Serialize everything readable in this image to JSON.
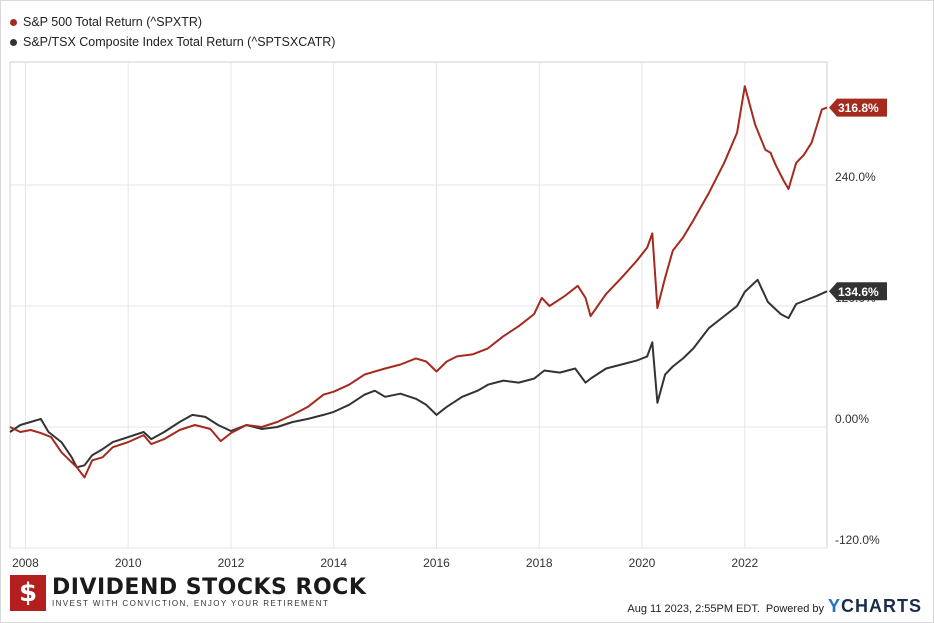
{
  "chart_data": {
    "type": "line",
    "legend": [
      {
        "name": "S&P 500 Total Return (^SPXTR)",
        "color": "#a52a1e"
      },
      {
        "name": "S&P/TSX Composite Index Total Return (^SPTSXCATR)",
        "color": "#333333"
      }
    ],
    "x_ticks": [
      "2008",
      "2010",
      "2012",
      "2014",
      "2016",
      "2018",
      "2020",
      "2022"
    ],
    "x_tick_values": [
      2008.0,
      2010.0,
      2012.0,
      2014.0,
      2016.0,
      2018.0,
      2020.0,
      2022.0
    ],
    "x_range": [
      2007.7,
      2023.6
    ],
    "y_ticks": [
      "-120.0%",
      "0.00%",
      "120.0%",
      "240.0%"
    ],
    "y_tick_values": [
      -120,
      0,
      120,
      240
    ],
    "y_range": [
      -120,
      362
    ],
    "ylabel_position": "right",
    "grid": true,
    "series": [
      {
        "name": "S&P 500 Total Return (^SPXTR)",
        "color": "#a52a1e",
        "end_label": "316.8%",
        "points": [
          [
            2007.7,
            0
          ],
          [
            2007.9,
            -5
          ],
          [
            2008.1,
            -3
          ],
          [
            2008.3,
            -6
          ],
          [
            2008.5,
            -10
          ],
          [
            2008.7,
            -25
          ],
          [
            2008.9,
            -35
          ],
          [
            2009.0,
            -40
          ],
          [
            2009.15,
            -50
          ],
          [
            2009.3,
            -33
          ],
          [
            2009.5,
            -30
          ],
          [
            2009.7,
            -20
          ],
          [
            2010.0,
            -15
          ],
          [
            2010.3,
            -8
          ],
          [
            2010.45,
            -17
          ],
          [
            2010.7,
            -12
          ],
          [
            2011.0,
            -3
          ],
          [
            2011.3,
            2
          ],
          [
            2011.6,
            -2
          ],
          [
            2011.8,
            -14
          ],
          [
            2012.0,
            -6
          ],
          [
            2012.3,
            2
          ],
          [
            2012.6,
            0
          ],
          [
            2012.9,
            5
          ],
          [
            2013.2,
            12
          ],
          [
            2013.5,
            20
          ],
          [
            2013.8,
            32
          ],
          [
            2014.0,
            35
          ],
          [
            2014.3,
            42
          ],
          [
            2014.6,
            52
          ],
          [
            2014.8,
            55
          ],
          [
            2015.0,
            58
          ],
          [
            2015.3,
            62
          ],
          [
            2015.6,
            68
          ],
          [
            2015.8,
            65
          ],
          [
            2016.0,
            55
          ],
          [
            2016.2,
            65
          ],
          [
            2016.4,
            70
          ],
          [
            2016.7,
            72
          ],
          [
            2017.0,
            78
          ],
          [
            2017.3,
            90
          ],
          [
            2017.6,
            100
          ],
          [
            2017.9,
            112
          ],
          [
            2018.05,
            128
          ],
          [
            2018.2,
            120
          ],
          [
            2018.5,
            130
          ],
          [
            2018.75,
            140
          ],
          [
            2018.9,
            128
          ],
          [
            2019.0,
            110
          ],
          [
            2019.3,
            132
          ],
          [
            2019.6,
            148
          ],
          [
            2019.9,
            165
          ],
          [
            2020.1,
            178
          ],
          [
            2020.2,
            192
          ],
          [
            2020.3,
            118
          ],
          [
            2020.45,
            148
          ],
          [
            2020.6,
            175
          ],
          [
            2020.8,
            188
          ],
          [
            2021.0,
            205
          ],
          [
            2021.3,
            232
          ],
          [
            2021.6,
            262
          ],
          [
            2021.85,
            292
          ],
          [
            2022.0,
            338
          ],
          [
            2022.2,
            300
          ],
          [
            2022.4,
            275
          ],
          [
            2022.5,
            272
          ],
          [
            2022.6,
            260
          ],
          [
            2022.75,
            245
          ],
          [
            2022.85,
            236
          ],
          [
            2023.0,
            262
          ],
          [
            2023.15,
            270
          ],
          [
            2023.3,
            282
          ],
          [
            2023.5,
            315
          ],
          [
            2023.6,
            316.8
          ]
        ]
      },
      {
        "name": "S&P/TSX Composite Index Total Return (^SPTSXCATR)",
        "color": "#333333",
        "end_label": "134.6%",
        "points": [
          [
            2007.7,
            -5
          ],
          [
            2007.9,
            2
          ],
          [
            2008.1,
            5
          ],
          [
            2008.3,
            8
          ],
          [
            2008.45,
            -5
          ],
          [
            2008.7,
            -15
          ],
          [
            2008.9,
            -30
          ],
          [
            2009.0,
            -40
          ],
          [
            2009.15,
            -38
          ],
          [
            2009.3,
            -28
          ],
          [
            2009.5,
            -22
          ],
          [
            2009.7,
            -15
          ],
          [
            2010.0,
            -10
          ],
          [
            2010.3,
            -5
          ],
          [
            2010.45,
            -12
          ],
          [
            2010.7,
            -5
          ],
          [
            2011.0,
            5
          ],
          [
            2011.25,
            12
          ],
          [
            2011.5,
            10
          ],
          [
            2011.75,
            2
          ],
          [
            2012.0,
            -4
          ],
          [
            2012.3,
            2
          ],
          [
            2012.6,
            -2
          ],
          [
            2012.9,
            0
          ],
          [
            2013.2,
            5
          ],
          [
            2013.5,
            8
          ],
          [
            2013.8,
            12
          ],
          [
            2014.0,
            15
          ],
          [
            2014.3,
            22
          ],
          [
            2014.6,
            32
          ],
          [
            2014.8,
            36
          ],
          [
            2015.0,
            30
          ],
          [
            2015.3,
            33
          ],
          [
            2015.6,
            28
          ],
          [
            2015.8,
            22
          ],
          [
            2016.0,
            12
          ],
          [
            2016.2,
            20
          ],
          [
            2016.5,
            30
          ],
          [
            2016.8,
            36
          ],
          [
            2017.0,
            42
          ],
          [
            2017.3,
            46
          ],
          [
            2017.6,
            44
          ],
          [
            2017.9,
            48
          ],
          [
            2018.1,
            56
          ],
          [
            2018.4,
            54
          ],
          [
            2018.7,
            58
          ],
          [
            2018.9,
            44
          ],
          [
            2019.0,
            48
          ],
          [
            2019.3,
            58
          ],
          [
            2019.6,
            62
          ],
          [
            2019.9,
            66
          ],
          [
            2020.1,
            70
          ],
          [
            2020.2,
            84
          ],
          [
            2020.3,
            24
          ],
          [
            2020.45,
            52
          ],
          [
            2020.6,
            60
          ],
          [
            2020.8,
            68
          ],
          [
            2021.0,
            78
          ],
          [
            2021.3,
            98
          ],
          [
            2021.6,
            110
          ],
          [
            2021.85,
            120
          ],
          [
            2022.0,
            134
          ],
          [
            2022.25,
            146
          ],
          [
            2022.45,
            124
          ],
          [
            2022.7,
            112
          ],
          [
            2022.85,
            108
          ],
          [
            2023.0,
            122
          ],
          [
            2023.2,
            126
          ],
          [
            2023.4,
            130
          ],
          [
            2023.6,
            134.6
          ]
        ]
      }
    ]
  },
  "footer": {
    "brand_name": "DIVIDEND STOCKS ROCK",
    "brand_tagline": "INVEST WITH CONVICTION, ENJOY YOUR RETIREMENT",
    "brand_symbol": "$",
    "timestamp": "Aug 11 2023, 2:55PM EDT.",
    "powered_by": "Powered by",
    "ycharts_y": "Y",
    "ycharts_rest": "CHARTS"
  }
}
